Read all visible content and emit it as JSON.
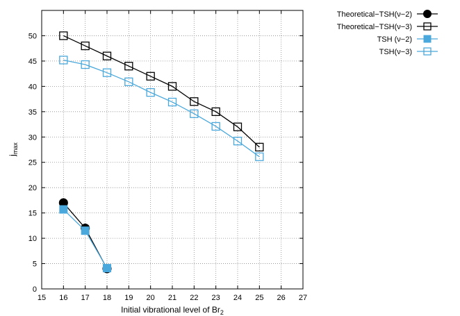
{
  "chart_data": {
    "type": "line",
    "title": "",
    "xlabel": "Initial vibrational level of Br",
    "xlabel_subscript": "2",
    "ylabel": "j",
    "ylabel_subscript": "max",
    "xlim": [
      15,
      27
    ],
    "ylim": [
      0,
      55
    ],
    "xticks": [
      15,
      16,
      17,
      18,
      19,
      20,
      21,
      22,
      23,
      24,
      25,
      26,
      27
    ],
    "yticks": [
      0,
      5,
      10,
      15,
      20,
      25,
      30,
      35,
      40,
      45,
      50
    ],
    "grid": true,
    "legend_position": "top-right-outside",
    "series": [
      {
        "name": "Theoretical−TSH(ν−2)",
        "color": "#000000",
        "marker": "filled-circle",
        "x": [
          16,
          17,
          18
        ],
        "y": [
          17,
          12,
          4
        ]
      },
      {
        "name": "Theoretical−TSH(ν−3)",
        "color": "#000000",
        "marker": "open-square",
        "x": [
          16,
          17,
          18,
          19,
          20,
          21,
          22,
          23,
          24,
          25
        ],
        "y": [
          50,
          48,
          46,
          44,
          42,
          40,
          37,
          35,
          32,
          28
        ]
      },
      {
        "name": "TSH (ν−2)",
        "color": "#4aa8dc",
        "marker": "filled-square",
        "x": [
          16,
          17,
          18
        ],
        "y": [
          15.7,
          11.5,
          4.1
        ]
      },
      {
        "name": "TSH(ν−3)",
        "color": "#4aa8dc",
        "marker": "open-square",
        "x": [
          16,
          17,
          18,
          19,
          20,
          21,
          22,
          23,
          24,
          25
        ],
        "y": [
          45.2,
          44.3,
          42.7,
          40.9,
          38.8,
          36.9,
          34.6,
          32.1,
          29.2,
          26.1
        ]
      }
    ]
  }
}
